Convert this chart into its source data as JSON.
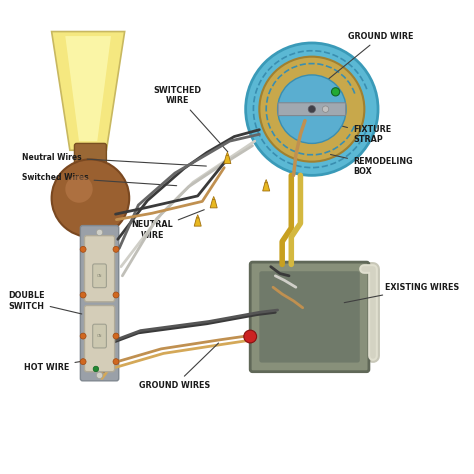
{
  "bg_color": "#ffffff",
  "labels": {
    "ground_wire": "GROUND WIRE",
    "switched_wire": "SWITCHED\nWIRE",
    "neutral_wire": "NEUTRAL\nWIRE",
    "fixture_strap": "FIXTURE\nSTRAP",
    "remodeling_box": "REMODELING\nBOX",
    "neutral_wires": "Neutral Wires",
    "switched_wires": "Switched Wires",
    "double_switch": "DOUBLE\nSWITCH",
    "hot_wire": "HOT WIRE",
    "ground_wires": "GROUND WIRES",
    "existing_wires": "EXISTING WIRES"
  },
  "colors": {
    "lamp_shade": "#f5e87c",
    "lamp_base_dark": "#8b5e3c",
    "fixture_outer": "#5bb8d4",
    "fixture_inner": "#c8a84b",
    "wire_black": "#3a3a3a",
    "wire_white": "#d0cfc8",
    "wire_gold": "#c8a020",
    "wire_bare": "#c09050",
    "wire_red": "#cc2222",
    "connector_yellow": "#e8b820",
    "switch_body": "#d4cdb8",
    "switch_metal": "#9aa0a8",
    "junction_box": "#808878",
    "text_color": "#1a1a1a",
    "annotation_line": "#404040",
    "bg": "#ffffff"
  }
}
